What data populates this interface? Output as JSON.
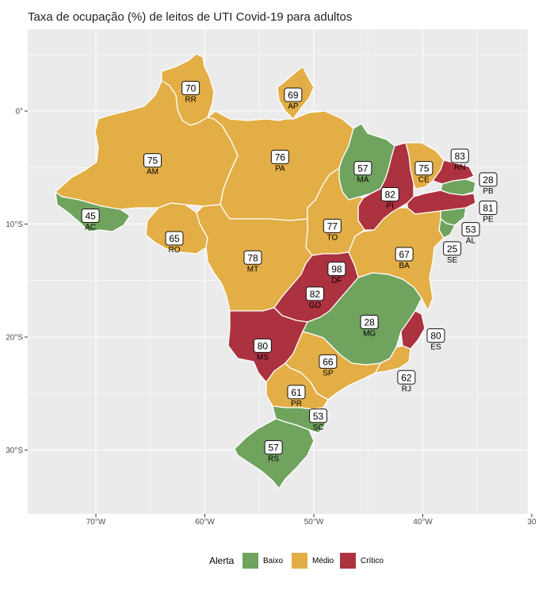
{
  "title": "Taxa de ocupação (%) de leitos de UTI Covid-19 para adultos",
  "axes": {
    "x_ticks": [
      {
        "value": -70,
        "label": "70°W"
      },
      {
        "value": -60,
        "label": "60°W"
      },
      {
        "value": -50,
        "label": "50°W"
      },
      {
        "value": -40,
        "label": "40°W"
      },
      {
        "value": -30,
        "label": "30"
      }
    ],
    "y_ticks": [
      {
        "value": 0,
        "label": "0°"
      },
      {
        "value": -10,
        "label": "10°S"
      },
      {
        "value": -20,
        "label": "20°S"
      },
      {
        "value": -30,
        "label": "30°S"
      }
    ]
  },
  "colors": {
    "baixo": "#6fa35e",
    "medio": "#e3ae45",
    "critico": "#ac3240",
    "panel": "#ebebeb",
    "grid": "#ffffff"
  },
  "legend": {
    "title": "Alerta",
    "items": [
      {
        "label": "Baixo",
        "level": "baixo"
      },
      {
        "label": "Médio",
        "level": "medio"
      },
      {
        "label": "Crítico",
        "level": "critico"
      }
    ]
  },
  "states": [
    {
      "abbr": "RR",
      "value": "70",
      "level": "medio",
      "lon": -61.3,
      "lat": 2.0
    },
    {
      "abbr": "AP",
      "value": "69",
      "level": "medio",
      "lon": -51.9,
      "lat": 1.4
    },
    {
      "abbr": "AM",
      "value": "75",
      "level": "medio",
      "lon": -64.8,
      "lat": -4.4
    },
    {
      "abbr": "PA",
      "value": "76",
      "level": "medio",
      "lon": -53.1,
      "lat": -4.1
    },
    {
      "abbr": "MA",
      "value": "57",
      "level": "baixo",
      "lon": -45.5,
      "lat": -5.1
    },
    {
      "abbr": "CE",
      "value": "75",
      "level": "medio",
      "lon": -39.9,
      "lat": -5.1
    },
    {
      "abbr": "RN",
      "value": "83",
      "level": "critico",
      "lon": -36.6,
      "lat": -4.0
    },
    {
      "abbr": "PB",
      "value": "28",
      "level": "baixo",
      "lon": -34.0,
      "lat": -6.1
    },
    {
      "abbr": "PI",
      "value": "82",
      "level": "critico",
      "lon": -43.0,
      "lat": -7.4
    },
    {
      "abbr": "PE",
      "value": "81",
      "level": "critico",
      "lon": -34.0,
      "lat": -8.6
    },
    {
      "abbr": "AC",
      "value": "45",
      "level": "baixo",
      "lon": -70.5,
      "lat": -9.3
    },
    {
      "abbr": "RO",
      "value": "65",
      "level": "medio",
      "lon": -62.8,
      "lat": -11.3
    },
    {
      "abbr": "TO",
      "value": "77",
      "level": "medio",
      "lon": -48.3,
      "lat": -10.2
    },
    {
      "abbr": "AL",
      "value": "53",
      "level": "baixo",
      "lon": -35.6,
      "lat": -10.5
    },
    {
      "abbr": "SE",
      "value": "25",
      "level": "baixo",
      "lon": -37.3,
      "lat": -12.2
    },
    {
      "abbr": "BA",
      "value": "67",
      "level": "medio",
      "lon": -41.7,
      "lat": -12.7
    },
    {
      "abbr": "MT",
      "value": "78",
      "level": "medio",
      "lon": -55.6,
      "lat": -13.0
    },
    {
      "abbr": "DF",
      "value": "98",
      "level": "critico",
      "lon": -47.9,
      "lat": -14.0
    },
    {
      "abbr": "GO",
      "value": "82",
      "level": "critico",
      "lon": -49.9,
      "lat": -16.2
    },
    {
      "abbr": "MG",
      "value": "28",
      "level": "baixo",
      "lon": -44.9,
      "lat": -18.7
    },
    {
      "abbr": "ES",
      "value": "80",
      "level": "critico",
      "lon": -38.8,
      "lat": -19.9
    },
    {
      "abbr": "MS",
      "value": "80",
      "level": "critico",
      "lon": -54.7,
      "lat": -20.8
    },
    {
      "abbr": "SP",
      "value": "66",
      "level": "medio",
      "lon": -48.7,
      "lat": -22.2
    },
    {
      "abbr": "RJ",
      "value": "62",
      "level": "medio",
      "lon": -41.5,
      "lat": -23.6
    },
    {
      "abbr": "PR",
      "value": "61",
      "level": "medio",
      "lon": -51.6,
      "lat": -24.9
    },
    {
      "abbr": "SC",
      "value": "53",
      "level": "baixo",
      "lon": -49.6,
      "lat": -27.0
    },
    {
      "abbr": "RS",
      "value": "57",
      "level": "baixo",
      "lon": -53.7,
      "lat": -29.8
    }
  ]
}
